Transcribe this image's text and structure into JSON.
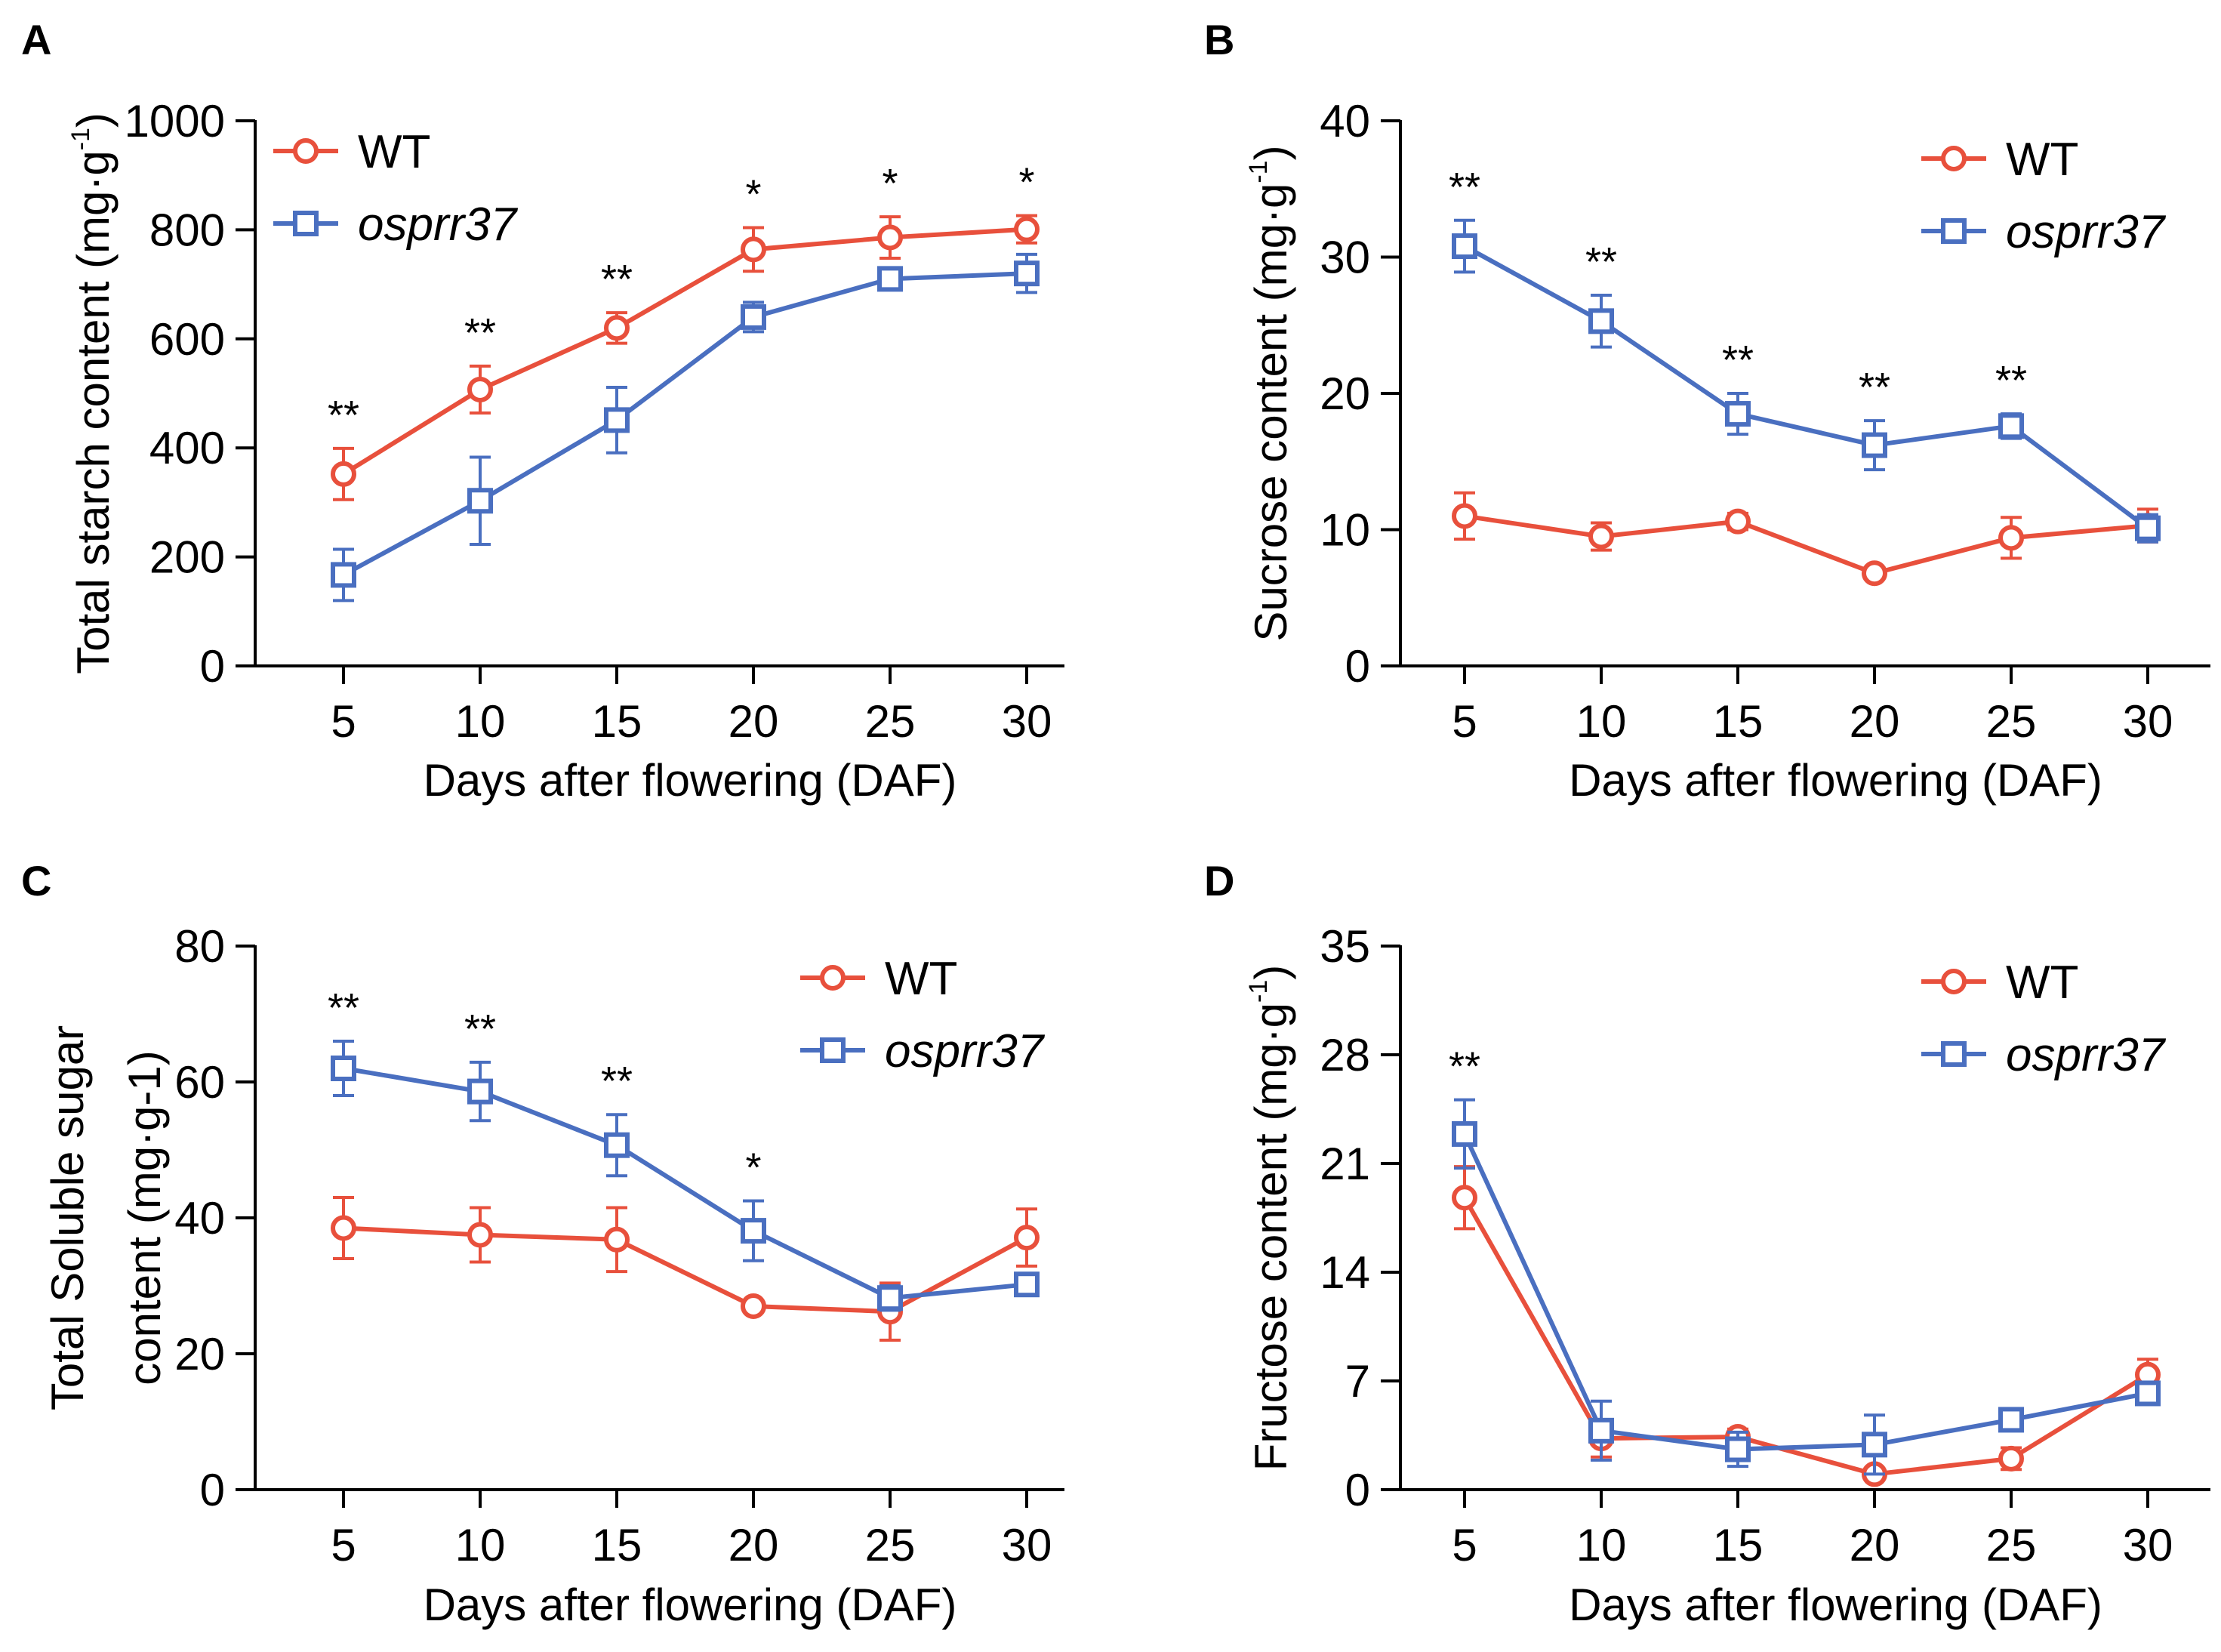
{
  "colors": {
    "wt": "#e8503c",
    "mutant": "#4a6fc0",
    "axis": "#000000"
  },
  "x_categories": [
    5,
    10,
    15,
    20,
    25,
    30
  ],
  "xlabel": "Days after flowering (DAF)",
  "legend": {
    "wt": "WT",
    "mutant": "osprr37"
  },
  "chart_data": [
    {
      "type": "line",
      "panel": "A",
      "title": "",
      "xlabel": "Days after flowering (DAF)",
      "ylabel_main": "Total starch content (mg·g",
      "ylabel_sup": "-1",
      "ylabel_tail": ")",
      "ylim": [
        0,
        1000
      ],
      "yticks": [
        0,
        200,
        400,
        600,
        800,
        1000
      ],
      "x": [
        5,
        10,
        15,
        20,
        25,
        30
      ],
      "series": [
        {
          "name": "WT",
          "marker": "circle",
          "values": [
            352,
            507,
            620,
            764,
            786,
            801
          ],
          "errors": [
            47,
            43,
            28,
            40,
            38,
            25
          ]
        },
        {
          "name": "osprr37",
          "marker": "square",
          "values": [
            167,
            303,
            451,
            640,
            710,
            720
          ],
          "errors": [
            47,
            80,
            60,
            27,
            12,
            35
          ]
        }
      ],
      "significance": [
        "**",
        "**",
        "**",
        "*",
        "*",
        "*"
      ],
      "legend_position": "top-left"
    },
    {
      "type": "line",
      "panel": "B",
      "title": "",
      "xlabel": "Days after flowering (DAF)",
      "ylabel_main": "Sucrose content (mg·g",
      "ylabel_sup": "-1",
      "ylabel_tail": ")",
      "ylim": [
        0,
        40
      ],
      "yticks": [
        0,
        10,
        20,
        30,
        40
      ],
      "x": [
        5,
        10,
        15,
        20,
        25,
        30
      ],
      "series": [
        {
          "name": "WT",
          "marker": "circle",
          "values": [
            11.0,
            9.5,
            10.6,
            6.8,
            9.4,
            10.3
          ],
          "errors": [
            1.7,
            1.0,
            0.6,
            0.3,
            1.5,
            1.2
          ]
        },
        {
          "name": "osprr37",
          "marker": "square",
          "values": [
            30.8,
            25.3,
            18.5,
            16.2,
            17.6,
            10.1
          ],
          "errors": [
            1.9,
            1.9,
            1.5,
            1.8,
            0.9,
            1.0
          ]
        }
      ],
      "significance": [
        "**",
        "**",
        "**",
        "**",
        "**",
        ""
      ],
      "legend_position": "top-right"
    },
    {
      "type": "line",
      "panel": "C",
      "title": "",
      "xlabel": "Days after flowering (DAF)",
      "ylabel_line1": "Total Soluble sugar",
      "ylabel_line2": "content  (mg·g-1)",
      "ylim": [
        0,
        80
      ],
      "yticks": [
        0,
        20,
        40,
        60,
        80
      ],
      "x": [
        5,
        10,
        15,
        20,
        25,
        30
      ],
      "series": [
        {
          "name": "WT",
          "marker": "circle",
          "values": [
            38.5,
            37.5,
            36.8,
            27.0,
            26.2,
            37.1
          ],
          "errors": [
            4.5,
            4.0,
            4.7,
            0.8,
            4.2,
            4.2
          ]
        },
        {
          "name": "osprr37",
          "marker": "square",
          "values": [
            62.0,
            58.6,
            50.7,
            38.1,
            28.2,
            30.2
          ],
          "errors": [
            4.0,
            4.3,
            4.5,
            4.4,
            1.8,
            1.0
          ]
        }
      ],
      "significance": [
        "**",
        "**",
        "**",
        "*",
        "",
        ""
      ],
      "legend_position": "top-right"
    },
    {
      "type": "line",
      "panel": "D",
      "title": "",
      "xlabel": "Days after flowering (DAF)",
      "ylabel_main": "Fructose content  (mg·g",
      "ylabel_sup": "-1",
      "ylabel_tail": ")",
      "ylim": [
        0,
        35
      ],
      "yticks": [
        0,
        7,
        14,
        21,
        28,
        35
      ],
      "x": [
        5,
        10,
        15,
        20,
        25,
        30
      ],
      "series": [
        {
          "name": "WT",
          "marker": "circle",
          "values": [
            18.8,
            3.3,
            3.4,
            1.0,
            2.0,
            7.4
          ],
          "errors": [
            2.0,
            1.2,
            0.5,
            0.2,
            0.7,
            1.0
          ]
        },
        {
          "name": "osprr37",
          "marker": "square",
          "values": [
            22.9,
            3.8,
            2.6,
            2.9,
            4.5,
            6.2
          ],
          "errors": [
            2.2,
            1.9,
            1.1,
            1.9,
            0.3,
            0.4
          ]
        }
      ],
      "significance": [
        "**",
        "",
        "",
        "",
        "",
        ""
      ],
      "legend_position": "top-right"
    }
  ]
}
